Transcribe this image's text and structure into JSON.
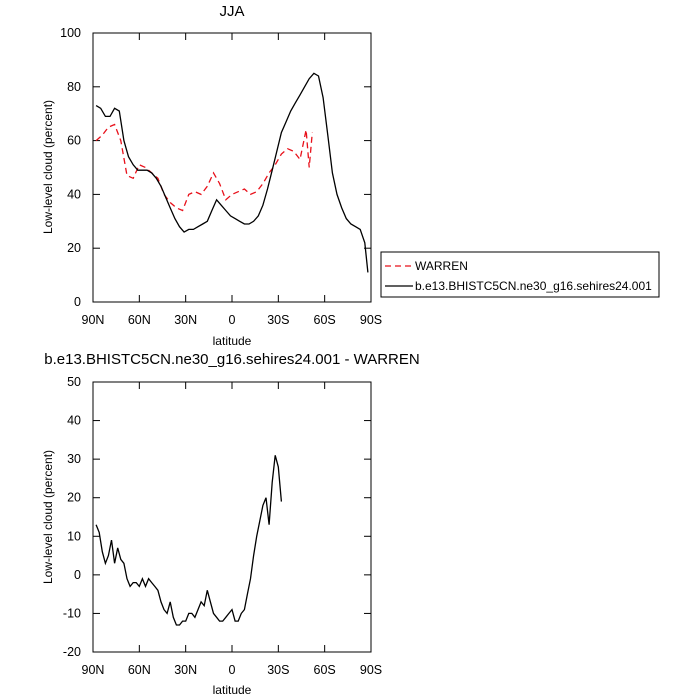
{
  "chart_data": [
    {
      "type": "line",
      "title": "JJA",
      "xlabel": "latitude",
      "ylabel": "Low-level cloud (percent)",
      "xlim": [
        90,
        -90
      ],
      "ylim": [
        0,
        100
      ],
      "xticks": [
        90,
        60,
        30,
        0,
        -30,
        -60,
        -90
      ],
      "xtick_labels": [
        "90N",
        "60N",
        "30N",
        "0",
        "30S",
        "60S",
        "90S"
      ],
      "yticks": [
        0,
        20,
        40,
        60,
        80,
        100
      ],
      "ytick_labels": [
        "0",
        "20",
        "40",
        "60",
        "80",
        "100"
      ],
      "legend_position": "right",
      "series": [
        {
          "name": "WARREN",
          "color": "#e8101a",
          "style": "dashed",
          "x": [
            88,
            84,
            80,
            76,
            72,
            68,
            64,
            60,
            56,
            52,
            48,
            44,
            40,
            36,
            32,
            28,
            24,
            20,
            16,
            12,
            8,
            4,
            0,
            -4,
            -8,
            -12,
            -16,
            -20,
            -24,
            -28,
            -32,
            -36,
            -40,
            -44,
            -48,
            -50,
            -52,
            -54,
            -56
          ],
          "y": [
            60,
            62,
            65,
            66,
            60,
            47,
            46,
            51,
            50,
            48,
            46,
            40,
            37,
            35,
            34,
            40,
            41,
            40,
            43,
            48,
            44,
            38,
            40,
            41,
            42,
            40,
            41,
            44,
            48,
            51,
            55,
            57,
            56,
            53,
            64,
            50,
            63,
            null,
            null
          ]
        },
        {
          "name": "b.e13.BHISTC5CN.ne30_g16.sehires24.001",
          "color": "#000000",
          "style": "solid",
          "x": [
            88,
            85,
            82,
            79,
            76,
            73,
            70,
            67,
            64,
            61,
            58,
            55,
            52,
            49,
            46,
            43,
            40,
            37,
            34,
            31,
            28,
            25,
            22,
            19,
            16,
            13,
            10,
            7,
            4,
            1,
            -2,
            -5,
            -8,
            -11,
            -14,
            -17,
            -20,
            -23,
            -26,
            -29,
            -32,
            -35,
            -38,
            -41,
            -44,
            -47,
            -50,
            -53,
            -56,
            -59,
            -62,
            -65,
            -68,
            -71,
            -74,
            -77,
            -80,
            -83,
            -86,
            -88
          ],
          "y": [
            73,
            72,
            69,
            69,
            72,
            71,
            60,
            54,
            51,
            49,
            49,
            49,
            48,
            46,
            43,
            39,
            35,
            31,
            28,
            26,
            27,
            27,
            28,
            29,
            30,
            34,
            38,
            36,
            34,
            32,
            31,
            30,
            29,
            29,
            30,
            32,
            36,
            42,
            49,
            56,
            63,
            67,
            71,
            74,
            77,
            80,
            83,
            85,
            84,
            76,
            62,
            48,
            40,
            35,
            31,
            29,
            28,
            27,
            22,
            11
          ]
        }
      ]
    },
    {
      "type": "line",
      "title": "b.e13.BHISTC5CN.ne30_g16.sehires24.001 - WARREN",
      "xlabel": "latitude",
      "ylabel": "Low-level cloud (percent)",
      "xlim": [
        90,
        -90
      ],
      "ylim": [
        -20,
        50
      ],
      "xticks": [
        90,
        60,
        30,
        0,
        -30,
        -60,
        -90
      ],
      "xtick_labels": [
        "90N",
        "60N",
        "30N",
        "0",
        "30S",
        "60S",
        "90S"
      ],
      "yticks": [
        -20,
        -10,
        0,
        10,
        20,
        30,
        40,
        50
      ],
      "ytick_labels": [
        "-20",
        "-10",
        "0",
        "10",
        "20",
        "30",
        "40",
        "50"
      ],
      "series": [
        {
          "color": "#000000",
          "style": "solid",
          "x": [
            88,
            86,
            84,
            82,
            80,
            78,
            76,
            74,
            72,
            70,
            68,
            66,
            64,
            62,
            60,
            58,
            56,
            54,
            52,
            50,
            48,
            46,
            44,
            42,
            40,
            38,
            36,
            34,
            32,
            30,
            28,
            26,
            24,
            22,
            20,
            18,
            16,
            14,
            12,
            10,
            8,
            6,
            4,
            2,
            0,
            -2,
            -4,
            -6,
            -8,
            -10,
            -12,
            -14,
            -16,
            -18,
            -20,
            -22,
            -24,
            -26,
            -28,
            -30,
            -32,
            -34,
            -36,
            -38,
            -40,
            -42,
            -44,
            -46,
            -48,
            -50,
            -52,
            -54,
            -56,
            -58
          ],
          "y": [
            13,
            11,
            6,
            3,
            5,
            9,
            3,
            7,
            4,
            3,
            -1,
            -3,
            -2,
            -2,
            -3,
            -1,
            -3,
            -1,
            -2,
            -3,
            -4,
            -7,
            -9,
            -10,
            -7,
            -11,
            -13,
            -13,
            -12,
            -12,
            -10,
            -10,
            -11,
            -9,
            -7,
            -8,
            -4,
            -7,
            -10,
            -11,
            -12,
            -12,
            -11,
            -10,
            -9,
            -12,
            -12,
            -10,
            -9,
            -5,
            -1,
            5,
            10,
            14,
            18,
            20,
            13,
            24,
            31,
            28,
            19,
            null,
            null,
            null,
            null,
            null,
            null,
            null,
            null,
            null,
            null,
            null,
            null,
            null
          ]
        }
      ]
    }
  ],
  "legend": {
    "entries": [
      {
        "label": "WARREN",
        "color": "#e8101a",
        "style": "dashed"
      },
      {
        "label": "b.e13.BHISTC5CN.ne30_g16.sehires24.001",
        "color": "#000000",
        "style": "solid"
      }
    ]
  }
}
